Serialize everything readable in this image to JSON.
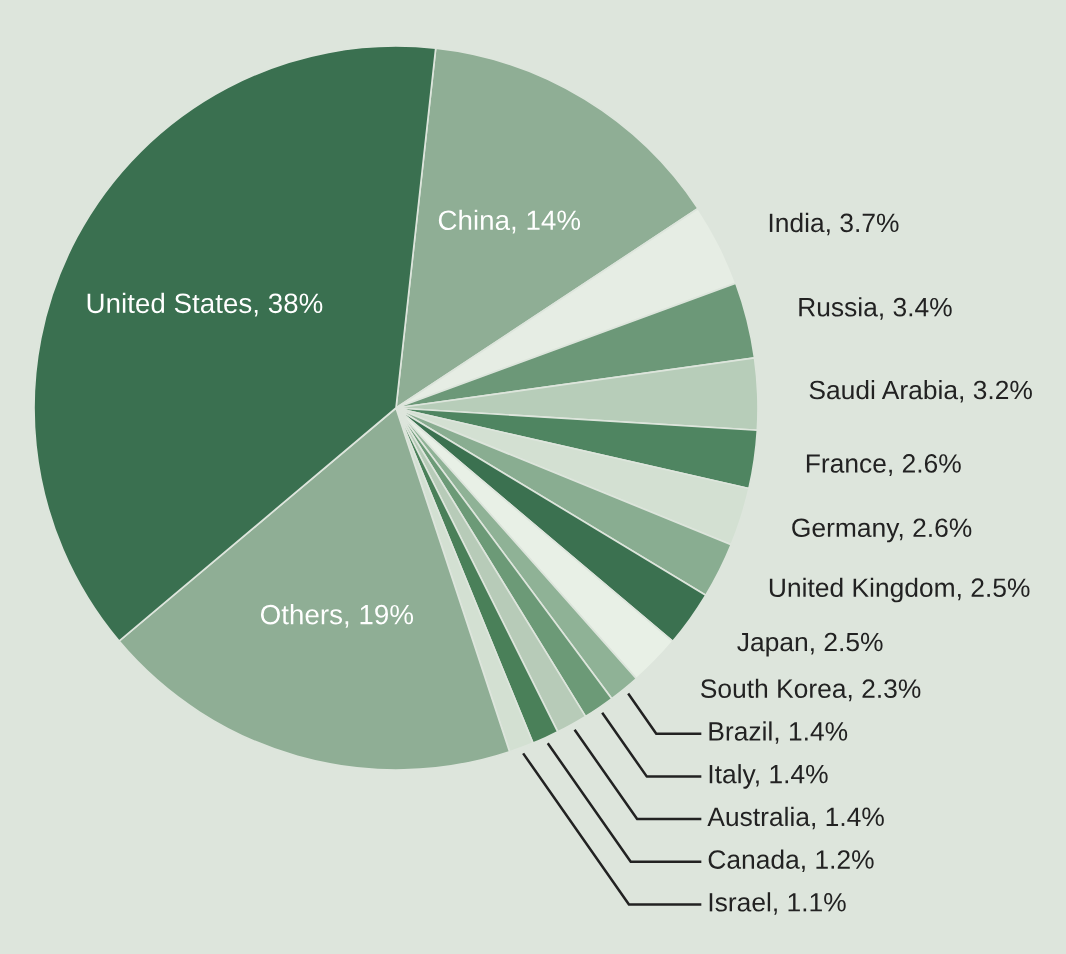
{
  "chart_data": {
    "type": "pie",
    "categories": [
      "China",
      "India",
      "Russia",
      "Saudi Arabia",
      "France",
      "Germany",
      "United Kingdom",
      "Japan",
      "South Korea",
      "Brazil",
      "Italy",
      "Australia",
      "Canada",
      "Israel",
      "Others",
      "United States"
    ],
    "values": [
      14,
      3.7,
      3.4,
      3.2,
      2.6,
      2.6,
      2.5,
      2.5,
      2.3,
      1.4,
      1.4,
      1.4,
      1.2,
      1.1,
      19,
      38
    ],
    "value_labels": [
      "14%",
      "3.7%",
      "3.4%",
      "3.2%",
      "2.6%",
      "2.6%",
      "2.5%",
      "2.5%",
      "2.3%",
      "1.4%",
      "1.4%",
      "1.4%",
      "1.2%",
      "1.1%",
      "19%",
      "38%"
    ],
    "colors": [
      "#8fae95",
      "#e6ede4",
      "#6c9878",
      "#b7cdb9",
      "#4f8561",
      "#d3e0d2",
      "#89ad91",
      "#3b7150",
      "#e8f0e6",
      "#8fb296",
      "#6c9a77",
      "#b7cbb8",
      "#4a8059",
      "#d3e0d2",
      "#8fae95",
      "#3a7050"
    ],
    "legend": false
  }
}
